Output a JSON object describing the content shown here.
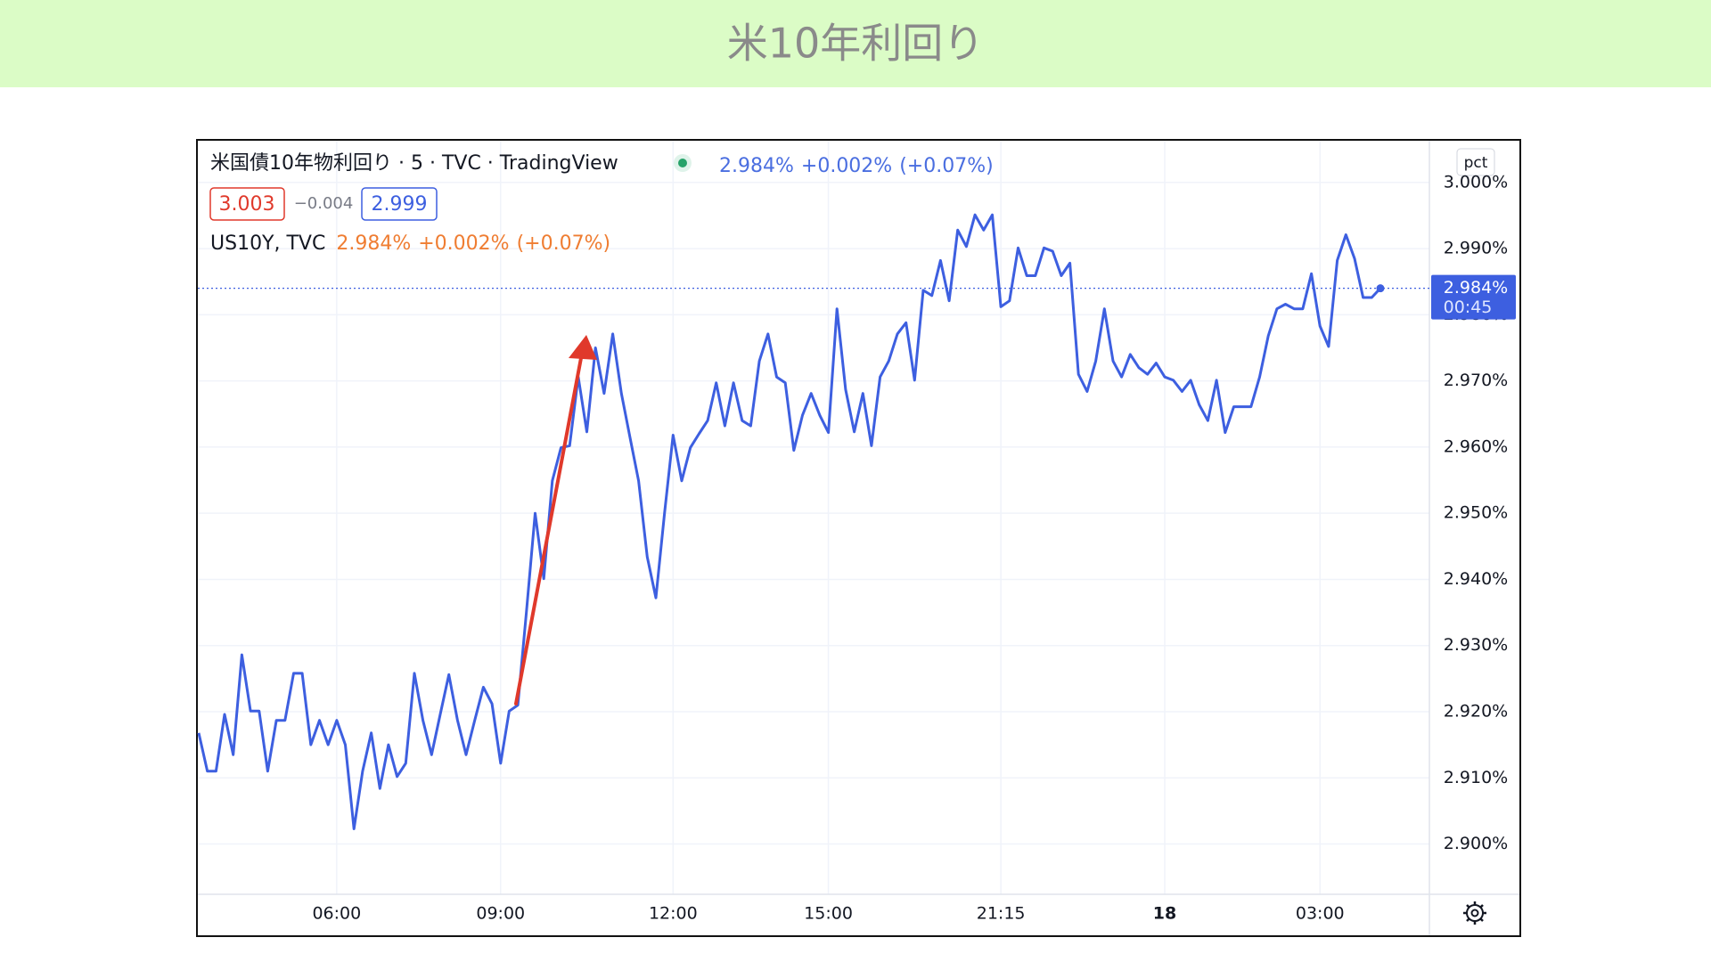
{
  "header": {
    "title": "米10年利回り"
  },
  "chart_data": {
    "type": "line",
    "title": "米国債10年物利回り · 5 · TVC · TradingView",
    "quote": {
      "last": "2.984%",
      "change": "+0.002%",
      "change_pct": "(+0.07%)"
    },
    "bid": "3.003",
    "spread": "−0.004",
    "ask": "2.999",
    "unit_button": "pct",
    "countdown": "00:45",
    "categories": [
      null,
      null,
      null,
      null,
      null,
      null,
      null,
      null,
      null,
      null,
      null,
      null,
      null,
      null,
      null,
      null,
      "06:00",
      null,
      null,
      null,
      null,
      null,
      null,
      null,
      null,
      null,
      null,
      null,
      null,
      null,
      null,
      null,
      null,
      null,
      null,
      "09:00",
      null,
      null,
      null,
      null,
      null,
      null,
      null,
      null,
      null,
      null,
      null,
      null,
      null,
      null,
      null,
      null,
      null,
      null,
      null,
      "12:00",
      null,
      null,
      null,
      null,
      null,
      null,
      null,
      null,
      null,
      null,
      null,
      null,
      null,
      null,
      null,
      null,
      null,
      "15:00",
      null,
      null,
      null,
      null,
      null,
      null,
      null,
      null,
      null,
      null,
      null,
      null,
      null,
      null,
      null,
      null,
      null,
      null,
      null,
      "21:15",
      null,
      null,
      null,
      null,
      null,
      null,
      null,
      null,
      null,
      null,
      null,
      null,
      null,
      null,
      null,
      null,
      null,
      null,
      "18",
      null,
      null,
      null,
      null,
      null,
      null,
      null,
      null,
      null,
      null,
      null,
      null,
      null,
      null,
      null,
      null,
      null,
      "03:00",
      null,
      null,
      null,
      null,
      null,
      null,
      null
    ],
    "series": [
      {
        "name": "US10Y, TVC",
        "color": "#3d5fe0",
        "values": [
          2.9168,
          2.911,
          2.911,
          2.9196,
          2.9135,
          2.9286,
          2.9201,
          2.9201,
          2.911,
          2.9187,
          2.9187,
          2.9258,
          2.9258,
          2.915,
          2.9187,
          2.915,
          2.9187,
          2.915,
          2.9023,
          2.911,
          2.9168,
          2.9084,
          2.915,
          2.9102,
          2.9122,
          2.9258,
          2.9187,
          2.9135,
          2.9196,
          2.9256,
          2.9187,
          2.9135,
          2.9187,
          2.9237,
          2.9212,
          2.9122,
          2.9201,
          2.921,
          2.9352,
          2.95,
          2.9401,
          2.9549,
          2.9599,
          2.9602,
          2.9706,
          2.9623,
          2.975,
          2.9681,
          2.9771,
          2.9681,
          2.9615,
          2.9549,
          2.9434,
          2.9372,
          2.95,
          2.9618,
          2.9549,
          2.9599,
          2.962,
          2.964,
          2.9697,
          2.9632,
          2.9697,
          2.964,
          2.9632,
          2.973,
          2.9771,
          2.9706,
          2.9697,
          2.9595,
          2.9648,
          2.9681,
          2.9648,
          2.9622,
          2.9809,
          2.9687,
          2.9623,
          2.9681,
          2.9602,
          2.9706,
          2.973,
          2.9771,
          2.9788,
          2.9701,
          2.9837,
          2.9829,
          2.9882,
          2.9821,
          2.9928,
          2.9903,
          2.9951,
          2.9928,
          2.9951,
          2.9812,
          2.9821,
          2.9901,
          2.9859,
          2.9859,
          2.9901,
          2.9896,
          2.9859,
          2.9878,
          2.971,
          2.9684,
          2.973,
          2.9809,
          2.973,
          2.9706,
          2.974,
          2.972,
          2.971,
          2.9727,
          2.9706,
          2.9701,
          2.9684,
          2.9701,
          2.9664,
          2.964,
          2.9701,
          2.9622,
          2.9661,
          2.9661,
          2.9661,
          2.9706,
          2.9768,
          2.9809,
          2.9816,
          2.9809,
          2.9809,
          2.9862,
          2.9783,
          2.9752,
          2.9882,
          2.9921,
          2.9885,
          2.9826,
          2.9826,
          2.984
        ]
      }
    ],
    "ylim": [
      2.8924,
      3.0063
    ],
    "yticks": [
      {
        "value": 2.9,
        "label": "2.900%"
      },
      {
        "value": 2.91,
        "label": "2.910%"
      },
      {
        "value": 2.92,
        "label": "2.920%"
      },
      {
        "value": 2.93,
        "label": "2.930%"
      },
      {
        "value": 2.94,
        "label": "2.940%"
      },
      {
        "value": 2.95,
        "label": "2.950%"
      },
      {
        "value": 2.96,
        "label": "2.960%"
      },
      {
        "value": 2.97,
        "label": "2.970%"
      },
      {
        "value": 2.98,
        "label": "2.980%"
      },
      {
        "value": 2.99,
        "label": "2.990%"
      },
      {
        "value": 3.0,
        "label": "3.000%"
      }
    ],
    "grid": true,
    "quote_color": "#4a6ee0",
    "legend_value_color": "#ef7d32"
  }
}
